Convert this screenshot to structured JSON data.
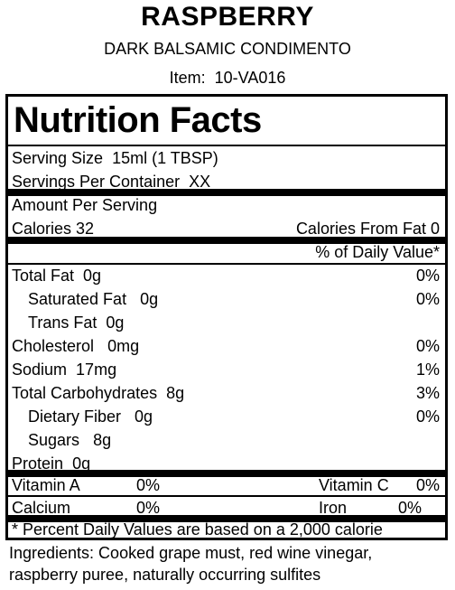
{
  "product": {
    "name": "RASPBERRY",
    "subtitle": "DARK BALSAMIC CONDIMENTO",
    "item_label": "Item:",
    "item_number": "10-VA016"
  },
  "panel": {
    "title": "Nutrition Facts",
    "serving_size_label": "Serving Size",
    "serving_size_value": "15ml (1 TBSP)",
    "servings_label": "Servings Per Container",
    "servings_value": "XX",
    "amount_per_serving": "Amount Per Serving",
    "calories_label": "Calories",
    "calories_value": "32",
    "calories_fat_label": "Calories From Fat",
    "calories_fat_value": "0",
    "dv_header": "% of Daily Value*",
    "nutrients": [
      {
        "name": "Total Fat",
        "amount": "0g",
        "dv": "0%"
      },
      {
        "name": "Saturated Fat",
        "amount": "0g",
        "dv": "0%"
      },
      {
        "name": "Trans Fat",
        "amount": "0g",
        "dv": ""
      },
      {
        "name": "Cholesterol",
        "amount": "0mg",
        "dv": "0%"
      },
      {
        "name": "Sodium",
        "amount": "17mg",
        "dv": "1%"
      },
      {
        "name": "Total Carbohydrates",
        "amount": "8g",
        "dv": "3%"
      },
      {
        "name": "Dietary Fiber",
        "amount": "0g",
        "dv": "0%"
      },
      {
        "name": "Sugars",
        "amount": "8g",
        "dv": ""
      },
      {
        "name": "Protein",
        "amount": "0g",
        "dv": ""
      }
    ],
    "vitamins": [
      {
        "a_name": "Vitamin A",
        "a_value": "0%",
        "b_name": "Vitamin C",
        "b_value": "0%"
      },
      {
        "a_name": "Calcium",
        "a_value": "0%",
        "b_name": "Iron",
        "b_value": "0%"
      }
    ],
    "footnote": "* Percent Daily Values are based on a 2,000 calorie"
  },
  "ingredients": {
    "line1": "Ingredients: Cooked grape must, red wine vinegar,",
    "line2": "raspberry puree, naturally occurring sulfites"
  }
}
